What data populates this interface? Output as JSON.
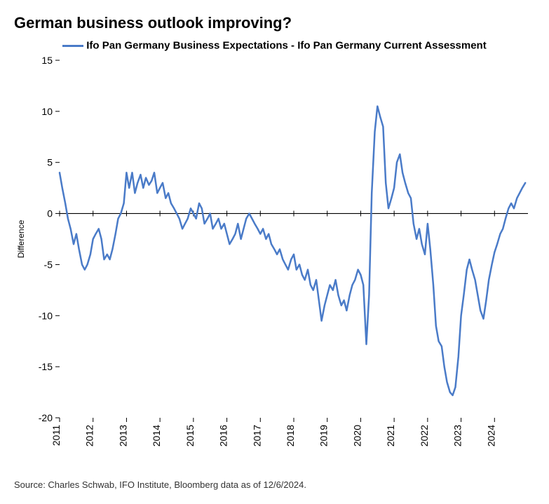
{
  "chart": {
    "type": "line",
    "title": "German business outlook improving?",
    "legend_label": "Ifo Pan Germany Business Expectations - Ifo Pan Germany Current Assessment",
    "ylabel": "Difference",
    "source": "Source: Charles Schwab, IFO Institute, Bloomberg data as of 12/6/2024.",
    "line_color": "#4a7bc8",
    "line_width": 2.5,
    "axis_color": "#000000",
    "background_color": "#ffffff",
    "title_fontsize": 22,
    "legend_fontsize": 15,
    "tick_fontsize": 14,
    "ylabel_fontsize": 12,
    "source_fontsize": 13,
    "ylim": [
      -20,
      15
    ],
    "ytick_step": 5,
    "yticks": [
      -20,
      -15,
      -10,
      -5,
      0,
      5,
      10,
      15
    ],
    "xlim": [
      2011,
      2025
    ],
    "xticks": [
      2011,
      2012,
      2013,
      2014,
      2015,
      2016,
      2017,
      2018,
      2019,
      2020,
      2021,
      2022,
      2023,
      2024
    ],
    "data_x": [
      2011.0,
      2011.08,
      2011.17,
      2011.25,
      2011.33,
      2011.42,
      2011.5,
      2011.58,
      2011.67,
      2011.75,
      2011.83,
      2011.92,
      2012.0,
      2012.08,
      2012.17,
      2012.25,
      2012.33,
      2012.42,
      2012.5,
      2012.58,
      2012.67,
      2012.75,
      2012.83,
      2012.92,
      2013.0,
      2013.08,
      2013.17,
      2013.25,
      2013.33,
      2013.42,
      2013.5,
      2013.58,
      2013.67,
      2013.75,
      2013.83,
      2013.92,
      2014.0,
      2014.08,
      2014.17,
      2014.25,
      2014.33,
      2014.42,
      2014.5,
      2014.58,
      2014.67,
      2014.75,
      2014.83,
      2014.92,
      2015.0,
      2015.08,
      2015.17,
      2015.25,
      2015.33,
      2015.42,
      2015.5,
      2015.58,
      2015.67,
      2015.75,
      2015.83,
      2015.92,
      2016.0,
      2016.08,
      2016.17,
      2016.25,
      2016.33,
      2016.42,
      2016.5,
      2016.58,
      2016.67,
      2016.75,
      2016.83,
      2016.92,
      2017.0,
      2017.08,
      2017.17,
      2017.25,
      2017.33,
      2017.42,
      2017.5,
      2017.58,
      2017.67,
      2017.75,
      2017.83,
      2017.92,
      2018.0,
      2018.08,
      2018.17,
      2018.25,
      2018.33,
      2018.42,
      2018.5,
      2018.58,
      2018.67,
      2018.75,
      2018.83,
      2018.92,
      2019.0,
      2019.08,
      2019.17,
      2019.25,
      2019.33,
      2019.42,
      2019.5,
      2019.58,
      2019.67,
      2019.75,
      2019.83,
      2019.92,
      2020.0,
      2020.08,
      2020.17,
      2020.25,
      2020.33,
      2020.42,
      2020.5,
      2020.58,
      2020.67,
      2020.75,
      2020.83,
      2020.92,
      2021.0,
      2021.08,
      2021.17,
      2021.25,
      2021.33,
      2021.42,
      2021.5,
      2021.58,
      2021.67,
      2021.75,
      2021.83,
      2021.92,
      2022.0,
      2022.08,
      2022.17,
      2022.25,
      2022.33,
      2022.42,
      2022.5,
      2022.58,
      2022.67,
      2022.75,
      2022.83,
      2022.92,
      2023.0,
      2023.08,
      2023.17,
      2023.25,
      2023.33,
      2023.42,
      2023.5,
      2023.58,
      2023.67,
      2023.75,
      2023.83,
      2023.92,
      2024.0,
      2024.08,
      2024.17,
      2024.25,
      2024.33,
      2024.42,
      2024.5,
      2024.58,
      2024.67,
      2024.75,
      2024.83,
      2024.92
    ],
    "data_y": [
      4.0,
      2.5,
      1.0,
      -0.5,
      -1.5,
      -3.0,
      -2.0,
      -3.5,
      -5.0,
      -5.5,
      -5.0,
      -4.0,
      -2.5,
      -2.0,
      -1.5,
      -2.5,
      -4.5,
      -4.0,
      -4.5,
      -3.5,
      -2.0,
      -0.5,
      0.0,
      1.0,
      4.0,
      2.5,
      4.0,
      2.0,
      3.0,
      3.8,
      2.5,
      3.5,
      2.8,
      3.2,
      4.0,
      2.0,
      2.5,
      3.0,
      1.5,
      2.0,
      1.0,
      0.5,
      0.0,
      -0.5,
      -1.5,
      -1.0,
      -0.5,
      0.5,
      0.0,
      -0.5,
      1.0,
      0.5,
      -1.0,
      -0.5,
      0.0,
      -1.5,
      -1.0,
      -0.5,
      -1.5,
      -1.0,
      -2.0,
      -3.0,
      -2.5,
      -2.0,
      -1.0,
      -2.5,
      -1.5,
      -0.5,
      0.0,
      -0.5,
      -1.0,
      -1.5,
      -2.0,
      -1.5,
      -2.5,
      -2.0,
      -3.0,
      -3.5,
      -4.0,
      -3.5,
      -4.5,
      -5.0,
      -5.5,
      -4.5,
      -4.0,
      -5.5,
      -5.0,
      -6.0,
      -6.5,
      -5.5,
      -7.0,
      -7.5,
      -6.5,
      -8.5,
      -10.5,
      -9.0,
      -8.0,
      -7.0,
      -7.5,
      -6.5,
      -8.0,
      -9.0,
      -8.5,
      -9.5,
      -8.0,
      -7.0,
      -6.5,
      -5.5,
      -6.0,
      -7.0,
      -12.8,
      -8.0,
      2.0,
      8.0,
      10.5,
      9.5,
      8.5,
      3.0,
      0.5,
      1.5,
      2.5,
      5.0,
      5.8,
      4.0,
      3.0,
      2.0,
      1.5,
      -1.0,
      -2.5,
      -1.5,
      -3.0,
      -4.0,
      -1.0,
      -3.5,
      -7.0,
      -11.0,
      -12.5,
      -13.0,
      -15.0,
      -16.5,
      -17.5,
      -17.8,
      -17.0,
      -14.0,
      -10.0,
      -8.0,
      -5.5,
      -4.5,
      -5.5,
      -6.5,
      -8.0,
      -9.5,
      -10.3,
      -8.5,
      -6.5,
      -5.0,
      -3.8,
      -3.0,
      -2.0,
      -1.5,
      -0.5,
      0.5,
      1.0,
      0.5,
      1.5,
      2.0,
      2.5,
      3.0
    ]
  }
}
